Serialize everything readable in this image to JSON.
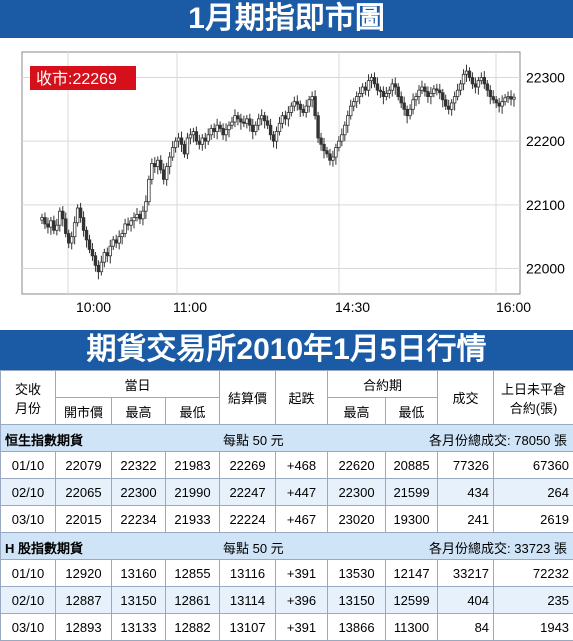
{
  "title": "1月期指即市圖",
  "chart_data": {
    "type": "candlestick",
    "close_label": "收市:22269",
    "x_tick_labels": [
      "10:00",
      "11:00",
      "14:30",
      "16:00"
    ],
    "y_tick_labels": [
      "22300",
      "22200",
      "22100",
      "22000"
    ],
    "ylim": [
      21960,
      22340
    ],
    "grid": true,
    "colors": {
      "candle": "#333333",
      "label_bg": "#d6101a",
      "grid": "#d9d9d9"
    },
    "x": [
      0,
      1,
      2,
      3,
      4,
      5,
      6,
      7,
      8,
      9,
      10,
      11,
      12,
      13,
      14,
      15,
      16,
      17,
      18,
      19,
      20,
      21,
      22,
      23,
      24,
      25,
      26,
      27,
      28,
      29,
      30,
      31,
      32,
      33,
      34,
      35,
      36,
      37,
      38,
      39,
      40,
      41,
      42,
      43,
      44,
      45,
      46,
      47,
      48,
      49,
      50,
      51,
      52,
      53,
      54,
      55,
      56,
      57,
      58,
      59,
      60,
      61,
      62,
      63,
      64,
      65,
      66,
      67,
      68,
      69,
      70,
      71,
      72,
      73,
      74,
      75,
      76,
      77,
      78,
      79,
      80,
      81,
      82,
      83,
      84,
      85,
      86,
      87,
      88,
      89,
      90,
      91,
      92,
      93,
      94,
      95,
      96,
      97,
      98,
      99,
      100,
      101,
      102,
      103,
      104,
      105,
      106,
      107,
      108,
      109,
      110,
      111,
      112,
      113,
      114,
      115,
      116,
      117,
      118,
      119,
      120,
      121,
      122,
      123,
      124,
      125,
      126,
      127,
      128,
      129,
      130,
      131,
      132,
      133,
      134,
      135,
      136,
      137,
      138,
      139,
      140,
      141,
      142,
      143,
      144,
      145,
      146,
      147,
      148,
      149,
      150,
      151,
      152,
      153,
      154,
      155,
      156,
      157,
      158,
      159
    ],
    "values": [
      22080,
      22070,
      22065,
      22075,
      22060,
      22068,
      22090,
      22078,
      22055,
      22040,
      22050,
      22072,
      22095,
      22080,
      22060,
      22045,
      22030,
      22020,
      22005,
      21995,
      22010,
      22025,
      22020,
      22035,
      22045,
      22040,
      22050,
      22055,
      22070,
      22068,
      22075,
      22080,
      22085,
      22078,
      22090,
      22105,
      22140,
      22165,
      22160,
      22170,
      22155,
      22140,
      22160,
      22175,
      22190,
      22200,
      22205,
      22195,
      22180,
      22205,
      22210,
      22215,
      22200,
      22195,
      22205,
      22200,
      22210,
      22220,
      22215,
      22225,
      22220,
      22210,
      22218,
      22225,
      22230,
      22240,
      22235,
      22230,
      22228,
      22235,
      22225,
      22215,
      22225,
      22235,
      22240,
      22232,
      22225,
      22210,
      22200,
      22215,
      22228,
      22240,
      22235,
      22245,
      22255,
      22262,
      22258,
      22250,
      22245,
      22255,
      22265,
      22270,
      22240,
      22205,
      22195,
      22185,
      22180,
      22170,
      22175,
      22190,
      22200,
      22210,
      22225,
      22240,
      22255,
      22262,
      22270,
      22275,
      22285,
      22280,
      22295,
      22300,
      22290,
      22280,
      22278,
      22270,
      22275,
      22280,
      22290,
      22285,
      22270,
      22260,
      22250,
      22240,
      22250,
      22265,
      22270,
      22280,
      22285,
      22278,
      22270,
      22275,
      22282,
      22280,
      22276,
      22265,
      22255,
      22250,
      22260,
      22270,
      22280,
      22290,
      22305,
      22310,
      22300,
      22290,
      22285,
      22295,
      22300,
      22290,
      22280,
      22270,
      22265,
      22260,
      22255,
      22262,
      22268,
      22270,
      22266,
      22269
    ]
  },
  "subtitle": "期貨交易所2010年1月5日行情",
  "table": {
    "header": {
      "col1": "交收\n月份",
      "day_group": "當日",
      "open": "開市價",
      "high": "最高",
      "low": "最低",
      "settle": "結算價",
      "change": "起跌",
      "contract_group": "合約期",
      "c_high": "最高",
      "c_low": "最低",
      "volume": "成交",
      "oi": "上日未平倉\n合約(張)"
    },
    "sections": [
      {
        "name": "恒生指數期貨",
        "unit": "每點 50 元",
        "total": "各月份總成交: 78050 張",
        "rows": [
          [
            "01/10",
            "22079",
            "22322",
            "21983",
            "22269",
            "+468",
            "22620",
            "20885",
            "77326",
            "67360"
          ],
          [
            "02/10",
            "22065",
            "22300",
            "21990",
            "22247",
            "+447",
            "22300",
            "21599",
            "434",
            "264"
          ],
          [
            "03/10",
            "22015",
            "22234",
            "21933",
            "22224",
            "+467",
            "23020",
            "19300",
            "241",
            "2619"
          ]
        ]
      },
      {
        "name": "H 股指數期貨",
        "unit": "每點 50 元",
        "total": "各月份總成交: 33723 張",
        "rows": [
          [
            "01/10",
            "12920",
            "13160",
            "12855",
            "13116",
            "+391",
            "13530",
            "12147",
            "33217",
            "72232"
          ],
          [
            "02/10",
            "12887",
            "13150",
            "12861",
            "13114",
            "+396",
            "13150",
            "12599",
            "404",
            "235"
          ],
          [
            "03/10",
            "12893",
            "13133",
            "12882",
            "13107",
            "+391",
            "13866",
            "11300",
            "84",
            "1943"
          ]
        ]
      }
    ]
  }
}
